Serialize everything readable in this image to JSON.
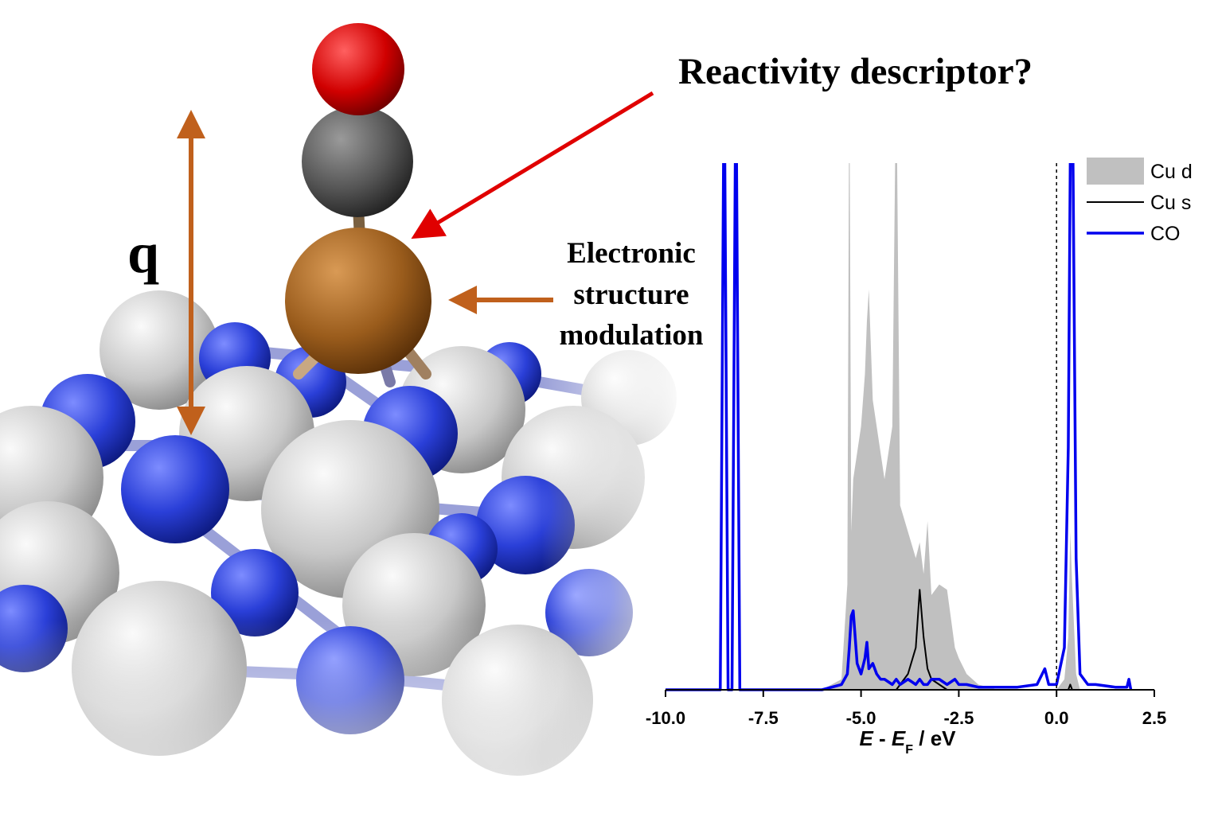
{
  "chart_data": {
    "type": "line",
    "annotations": {
      "title": "Reactivity descriptor?",
      "distance": "q",
      "modulation": [
        "Electronic",
        "structure",
        "modulation"
      ]
    },
    "xlabel": {
      "var": "E",
      "minus": " - ",
      "ref": "E",
      "ref_sub": "F",
      "unit": " / eV"
    },
    "x": [
      -10,
      -8.7,
      -8.6,
      -8.5,
      -8.4,
      -8.35,
      -8.3,
      -8.2,
      -8.1,
      -8.0,
      -6,
      -5.5,
      -5.35,
      -5.3,
      -5.25,
      -5.2,
      -5.1,
      -5.0,
      -4.9,
      -4.85,
      -4.8,
      -4.7,
      -4.6,
      -4.5,
      -4.4,
      -4.2,
      -4.1,
      -4.0,
      -3.8,
      -3.6,
      -3.5,
      -3.4,
      -3.3,
      -3.2,
      -3.0,
      -2.8,
      -2.6,
      -2.5,
      -2.3,
      -2.0,
      -1.5,
      -1.0,
      -0.5,
      -0.3,
      -0.2,
      0.0,
      0.2,
      0.3,
      0.35,
      0.4,
      0.5,
      0.6,
      0.8,
      1.0,
      1.5,
      1.8,
      1.85,
      1.9
    ],
    "series": [
      {
        "name": "Cu d",
        "color": "#c0c0c0",
        "style": "area",
        "values": [
          0,
          0,
          0,
          0,
          0,
          0,
          0,
          0,
          0,
          0,
          0,
          2,
          20,
          120,
          30,
          40,
          45,
          50,
          60,
          70,
          76,
          55,
          50,
          45,
          40,
          50,
          120,
          35,
          30,
          25,
          28,
          22,
          32,
          18,
          20,
          19,
          8,
          6,
          3,
          1,
          0,
          0,
          0,
          0,
          0,
          0,
          2,
          10,
          30,
          20,
          3,
          0,
          0,
          0,
          0,
          0,
          0,
          0
        ]
      },
      {
        "name": "Cu s",
        "color": "#000000",
        "style": "line",
        "width": 2,
        "values": [
          0,
          0,
          0,
          0,
          0,
          0,
          0,
          0,
          0,
          0,
          0,
          0,
          0,
          0,
          0,
          0,
          0,
          0,
          0,
          0,
          0,
          0,
          0,
          0,
          0,
          0,
          0,
          1,
          3,
          8,
          19,
          10,
          4,
          2,
          1,
          0,
          0,
          0,
          0,
          0,
          0,
          0,
          0,
          0,
          0,
          0,
          0,
          0,
          1,
          0,
          0,
          0,
          0,
          0,
          0,
          0,
          0,
          0
        ]
      },
      {
        "name": "CO",
        "color": "#0000ee",
        "style": "line",
        "width": 3.5,
        "values": [
          0,
          0,
          0,
          120,
          0,
          0,
          0,
          120,
          0,
          0,
          0,
          1,
          3,
          8,
          14,
          15,
          5,
          3,
          6,
          9,
          4,
          5,
          3,
          2,
          2,
          1,
          2,
          1,
          2,
          1,
          2,
          1,
          1,
          2,
          2,
          1,
          2,
          1,
          1,
          0.5,
          0.5,
          0.5,
          1,
          4,
          1,
          1,
          8,
          46,
          100,
          120,
          25,
          3,
          1,
          1,
          0.5,
          0.5,
          2,
          0
        ]
      }
    ],
    "xlim": [
      -10,
      2.5
    ],
    "xticks": [
      {
        "value": -10,
        "label": "-10.0"
      },
      -7.5,
      {
        "value": -5,
        "label": "-5.0"
      },
      -2.5,
      {
        "value": 0,
        "label": "0.0"
      },
      2.5
    ],
    "ylim": [
      0,
      100
    ],
    "fermi_line": 0,
    "legend": "upper right"
  }
}
